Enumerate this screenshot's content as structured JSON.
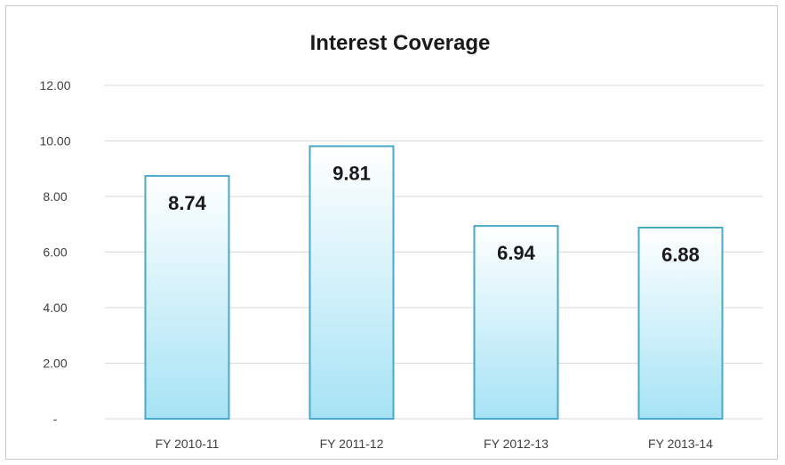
{
  "chart_data": {
    "type": "bar",
    "title": "Interest Coverage",
    "xlabel": "",
    "ylabel": "",
    "categories": [
      "FY 2010-11",
      "FY 2011-12",
      "FY 2012-13",
      "FY 2013-14"
    ],
    "values": [
      8.74,
      9.81,
      6.94,
      6.88
    ],
    "data_labels": [
      "8.74",
      "9.81",
      "6.94",
      "6.88"
    ],
    "ylim": [
      0,
      12
    ],
    "y_ticks": [
      0,
      2,
      4,
      6,
      8,
      10,
      12
    ],
    "y_tick_labels": [
      "-",
      "2.00",
      "4.00",
      "6.00",
      "8.00",
      "10.00",
      "12.00"
    ],
    "grid": true,
    "legend": "none",
    "colors": {
      "bar_fill_top": "#ffffff",
      "bar_fill_bottom": "#a6e3f5",
      "bar_border": "#4aa9c9",
      "gridline": "#d9d9d9"
    }
  }
}
